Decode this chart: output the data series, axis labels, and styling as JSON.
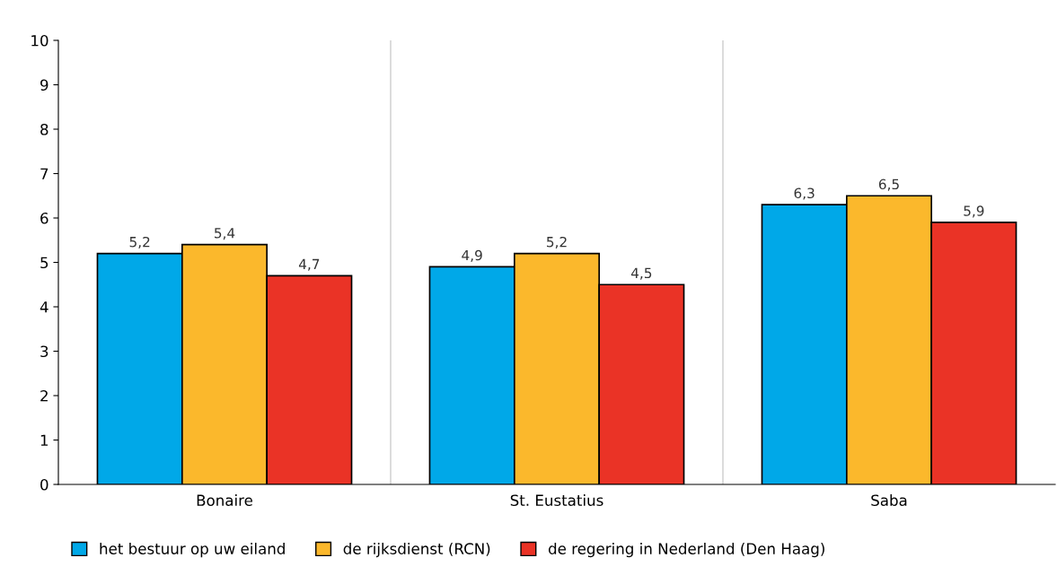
{
  "chart_data": {
    "type": "bar",
    "categories": [
      "Bonaire",
      "St. Eustatius",
      "Saba"
    ],
    "series": [
      {
        "name": "het bestuur op uw eiland",
        "color": "#00a8e8",
        "values": [
          5.2,
          4.9,
          6.3
        ],
        "value_labels": [
          "5,2",
          "4,9",
          "6,3"
        ]
      },
      {
        "name": "de rijksdienst (RCN)",
        "color": "#fbb82c",
        "values": [
          5.4,
          5.2,
          6.5
        ],
        "value_labels": [
          "5,4",
          "5,2",
          "6,5"
        ]
      },
      {
        "name": "de regering in Nederland (Den Haag)",
        "color": "#ea3326",
        "values": [
          4.7,
          4.5,
          5.9
        ],
        "value_labels": [
          "4,7",
          "4,5",
          "5,9"
        ]
      }
    ],
    "ylim": [
      0,
      10
    ],
    "yticks": [
      0,
      1,
      2,
      3,
      4,
      5,
      6,
      7,
      8,
      9,
      10
    ],
    "grid": "x",
    "legend": "bottom"
  }
}
